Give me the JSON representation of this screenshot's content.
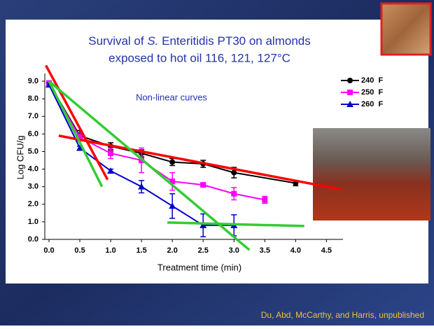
{
  "chart_data": {
    "type": "line",
    "title": [
      "Survival of ",
      "S.",
      " Enteritidis PT30 on almonds"
    ],
    "subtitle": "exposed to hot oil 116, 121, 127°C",
    "x_label": "Treatment time (min)",
    "y_label": "Log CFU/g",
    "annotation": "Non-linear curves",
    "footer": "Du, Abd, McCarthy, and Harris, unpublished",
    "xlim": [
      0,
      4.7
    ],
    "ylim": [
      0,
      9.4
    ],
    "xticks": [
      {
        "value": 0,
        "label": "0.0"
      },
      0.5,
      {
        "value": 1,
        "label": "1.0"
      },
      1.5,
      {
        "value": 2,
        "label": "2.0"
      },
      2.5,
      {
        "value": 3,
        "label": "3.0"
      },
      3.5,
      {
        "value": 4,
        "label": "4.0"
      },
      4.5
    ],
    "yticks": [
      {
        "value": 0,
        "label": "0.0"
      },
      {
        "value": 1,
        "label": "1.0"
      },
      {
        "value": 2,
        "label": "2.0"
      },
      {
        "value": 3,
        "label": "3.0"
      },
      {
        "value": 4,
        "label": "4.0"
      },
      {
        "value": 5,
        "label": "5.0"
      },
      {
        "value": 6,
        "label": "6.0"
      },
      {
        "value": 7,
        "label": "7.0"
      },
      {
        "value": 8,
        "label": "8.0"
      },
      {
        "value": 9,
        "label": "9.0"
      }
    ],
    "series": [
      {
        "name": "240  F",
        "color": "#000000",
        "marker": "circle",
        "x": [
          0,
          0.5,
          1,
          1.5,
          2,
          2.5,
          3,
          4
        ],
        "values": [
          8.9,
          5.9,
          5.3,
          4.9,
          4.4,
          4.3,
          3.8,
          3.2
        ],
        "errors": [
          0.1,
          0.3,
          0.2,
          0.2,
          0.2,
          0.2,
          0.3,
          0.15
        ]
      },
      {
        "name": "250  F",
        "color": "#ff00ff",
        "marker": "square",
        "x": [
          0,
          0.5,
          1,
          1.5,
          2,
          2.5,
          3,
          3.5
        ],
        "values": [
          8.9,
          5.8,
          4.9,
          4.5,
          3.3,
          3.1,
          2.6,
          2.25
        ],
        "errors": [
          0.1,
          0.2,
          0.3,
          0.7,
          0.5,
          0.1,
          0.35,
          0.2
        ]
      },
      {
        "name": "260  F",
        "color": "#0000cc",
        "marker": "triangle",
        "x": [
          0,
          0.5,
          1,
          1.5,
          2,
          2.5,
          3
        ],
        "values": [
          8.8,
          5.2,
          3.9,
          3.0,
          1.9,
          0.8,
          0.8
        ],
        "errors": [
          0.1,
          0.1,
          0.1,
          0.35,
          0.7,
          0.65,
          0.6
        ]
      }
    ],
    "fit_lines": [
      {
        "color": "#ff0000",
        "x": [
          -0.05,
          0.95
        ],
        "values": [
          9.9,
          3.4
        ]
      },
      {
        "color": "#ff0000",
        "x": [
          0.16,
          4.73
        ],
        "values": [
          5.9,
          2.85
        ]
      },
      {
        "color": "#33cc33",
        "x": [
          0,
          0.86
        ],
        "values": [
          9.0,
          3.0
        ]
      },
      {
        "color": "#33cc33",
        "x": [
          0,
          3.25
        ],
        "values": [
          9.0,
          -0.6
        ]
      },
      {
        "color": "#33cc33",
        "x": [
          1.92,
          4.14
        ],
        "values": [
          0.96,
          0.76
        ]
      }
    ]
  }
}
